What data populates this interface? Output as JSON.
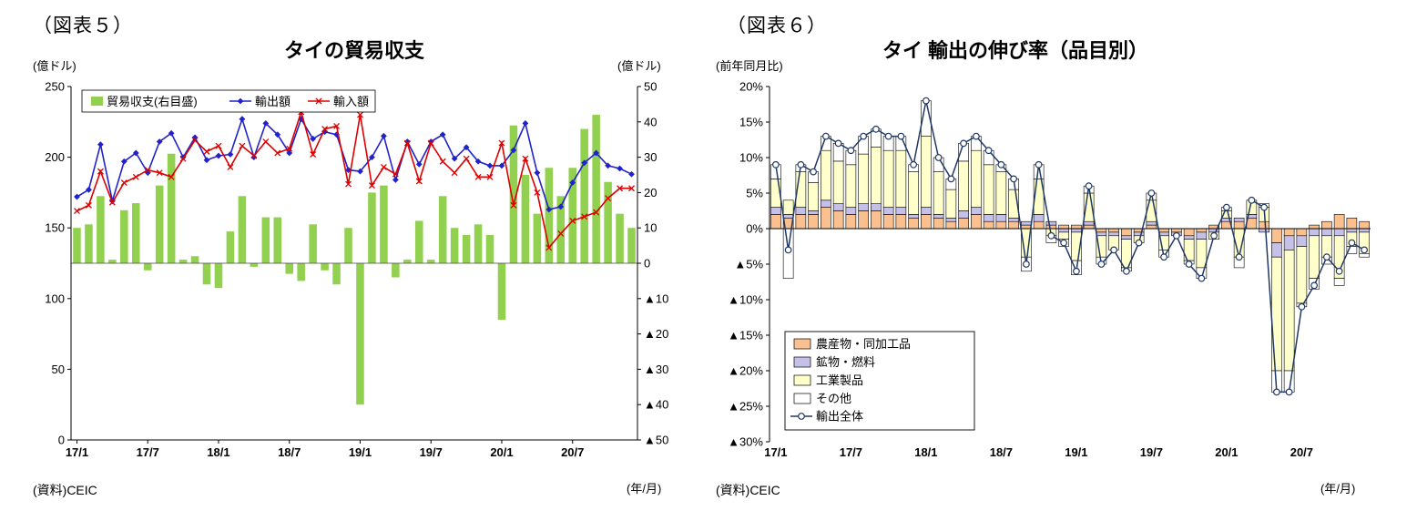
{
  "page": {
    "background": "#ffffff"
  },
  "chart_data": [
    {
      "type": "bar-line-combo",
      "fig_label": "（図表５）",
      "title": "タイの貿易収支",
      "unit_left": "(億ドル)",
      "unit_right": "(億ドル)",
      "source": "(資料)CEIC",
      "xaxis_note": "(年/月)",
      "legend_position": "top-inside",
      "grid": false,
      "ylim_left": [
        0,
        250
      ],
      "ylim_right": [
        -50,
        50
      ],
      "yticks_left": [
        {
          "v": 0,
          "label": "0"
        },
        {
          "v": 50,
          "label": "50"
        },
        {
          "v": 100,
          "label": "100"
        },
        {
          "v": 150,
          "label": "150"
        },
        {
          "v": 200,
          "label": "200"
        },
        {
          "v": 250,
          "label": "250"
        }
      ],
      "yticks_right": [
        {
          "v": 50,
          "label": "50"
        },
        {
          "v": 40,
          "label": "40"
        },
        {
          "v": 30,
          "label": "30"
        },
        {
          "v": 20,
          "label": "20"
        },
        {
          "v": 10,
          "label": "10"
        },
        {
          "v": 0,
          "label": "0"
        },
        {
          "v": -10,
          "label": "▲10"
        },
        {
          "v": -20,
          "label": "▲20"
        },
        {
          "v": -30,
          "label": "▲30"
        },
        {
          "v": -40,
          "label": "▲40"
        },
        {
          "v": -50,
          "label": "▲50"
        }
      ],
      "months": [
        "17/1",
        "17/2",
        "17/3",
        "17/4",
        "17/5",
        "17/6",
        "17/7",
        "17/8",
        "17/9",
        "17/10",
        "17/11",
        "17/12",
        "18/1",
        "18/2",
        "18/3",
        "18/4",
        "18/5",
        "18/6",
        "18/7",
        "18/8",
        "18/9",
        "18/10",
        "18/11",
        "18/12",
        "19/1",
        "19/2",
        "19/3",
        "19/4",
        "19/5",
        "19/6",
        "19/7",
        "19/8",
        "19/9",
        "19/10",
        "19/11",
        "19/12",
        "20/1",
        "20/2",
        "20/3",
        "20/4",
        "20/5",
        "20/6",
        "20/7",
        "20/8",
        "20/9",
        "20/10",
        "20/11",
        "20/12"
      ],
      "xtick_indices": [
        0,
        6,
        12,
        18,
        24,
        30,
        36,
        42
      ],
      "balance": {
        "name": "貿易収支(右目盛)",
        "axis": "right",
        "color": "#92d050",
        "values": [
          10,
          11,
          19,
          1,
          15,
          17,
          -2,
          22,
          31,
          1,
          2,
          -6,
          -7,
          9,
          19,
          -1,
          13,
          13,
          -3,
          -5,
          11,
          -2,
          -6,
          10,
          -40,
          20,
          22,
          -4,
          1,
          12,
          1,
          19,
          10,
          8,
          11,
          8,
          -16,
          39,
          25,
          14,
          27,
          19,
          27,
          38,
          42,
          23,
          14,
          10
        ]
      },
      "exports": {
        "name": "輸出額",
        "axis": "left",
        "color": "#2222cc",
        "marker": "diamond",
        "values": [
          172,
          177,
          209,
          169,
          197,
          203,
          189,
          211,
          217,
          200,
          214,
          198,
          201,
          202,
          227,
          200,
          224,
          216,
          203,
          227,
          213,
          218,
          216,
          191,
          190,
          200,
          215,
          184,
          211,
          195,
          211,
          216,
          199,
          207,
          197,
          194,
          194,
          205,
          224,
          189,
          163,
          165,
          182,
          196,
          203,
          194,
          192,
          188
        ]
      },
      "imports": {
        "name": "輸入額",
        "axis": "left",
        "color": "#dd0000",
        "marker": "x",
        "values": [
          162,
          166,
          190,
          168,
          182,
          186,
          191,
          189,
          186,
          199,
          212,
          204,
          208,
          193,
          208,
          201,
          211,
          203,
          206,
          232,
          202,
          220,
          222,
          181,
          230,
          180,
          193,
          188,
          210,
          183,
          210,
          197,
          189,
          199,
          186,
          186,
          210,
          166,
          199,
          175,
          136,
          146,
          155,
          158,
          161,
          171,
          178,
          178
        ]
      }
    },
    {
      "type": "stacked-bar-line",
      "fig_label": "（図表６）",
      "title": "タイ 輸出の伸び率（品目別）",
      "unit": "(前年同月比)",
      "source": "(資料)CEIC",
      "xaxis_note": "(年/月)",
      "legend_position": "bottom-left-inside",
      "grid": false,
      "ylim": [
        -30,
        20
      ],
      "yticks": [
        {
          "v": 20,
          "label": "20%"
        },
        {
          "v": 15,
          "label": "15%"
        },
        {
          "v": 10,
          "label": "10%"
        },
        {
          "v": 5,
          "label": "5%"
        },
        {
          "v": 0,
          "label": "0%"
        },
        {
          "v": -5,
          "label": "▲5%"
        },
        {
          "v": -10,
          "label": "▲10%"
        },
        {
          "v": -15,
          "label": "▲15%"
        },
        {
          "v": -20,
          "label": "▲20%"
        },
        {
          "v": -25,
          "label": "▲25%"
        },
        {
          "v": -30,
          "label": "▲30%"
        }
      ],
      "months": [
        "17/1",
        "17/2",
        "17/3",
        "17/4",
        "17/5",
        "17/6",
        "17/7",
        "17/8",
        "17/9",
        "17/10",
        "17/11",
        "17/12",
        "18/1",
        "18/2",
        "18/3",
        "18/4",
        "18/5",
        "18/6",
        "18/7",
        "18/8",
        "18/9",
        "18/10",
        "18/11",
        "18/12",
        "19/1",
        "19/2",
        "19/3",
        "19/4",
        "19/5",
        "19/6",
        "19/7",
        "19/8",
        "19/9",
        "19/10",
        "19/11",
        "19/12",
        "20/1",
        "20/2",
        "20/3",
        "20/4",
        "20/5",
        "20/6",
        "20/7",
        "20/8",
        "20/9",
        "20/10",
        "20/11",
        "20/12"
      ],
      "xtick_indices": [
        0,
        6,
        12,
        18,
        24,
        30,
        36,
        42
      ],
      "bar_series": [
        {
          "name": "農産物・同加工品",
          "color": "#fac090",
          "values": [
            2,
            1.5,
            2,
            2,
            3,
            2.5,
            2,
            2.5,
            2.5,
            2,
            2,
            1.5,
            2,
            1.5,
            1,
            1.5,
            2,
            1,
            1,
            1,
            0.5,
            1,
            0.5,
            0.5,
            0.5,
            0.5,
            -0.5,
            -0.5,
            -1,
            -0.5,
            0.5,
            -0.5,
            -0.5,
            -1,
            -0.5,
            0.5,
            1,
            1,
            1.5,
            1,
            -2,
            -1,
            -1,
            0.5,
            1,
            2,
            1.5,
            1
          ]
        },
        {
          "name": "鉱物・燃料",
          "color": "#c5c0e8",
          "values": [
            1,
            0.5,
            1,
            0.5,
            1,
            1,
            1,
            1,
            1,
            1,
            1,
            0.5,
            1,
            0.5,
            0.5,
            1,
            1,
            1,
            1,
            0.5,
            0.5,
            1,
            0.5,
            -0.5,
            -0.5,
            0.5,
            -0.5,
            -0.5,
            -0.5,
            -0.5,
            0.5,
            -0.5,
            -0.5,
            -0.5,
            -1,
            -0.5,
            0.5,
            0.5,
            0.5,
            -0.5,
            -2,
            -2,
            -1.5,
            -1,
            -1,
            -1,
            -0.5,
            -0.5
          ]
        },
        {
          "name": "工業製品",
          "color": "#ffffcc",
          "values": [
            4,
            2,
            5,
            4,
            7,
            6,
            6,
            7,
            8,
            8,
            8,
            6,
            10,
            6,
            4,
            7,
            8,
            7,
            6,
            4,
            -4,
            5,
            -1,
            -1,
            -4,
            4,
            -3,
            -2,
            -4,
            -1,
            3,
            -2,
            0,
            -3,
            -4,
            -1,
            1,
            -4,
            2,
            2,
            -16,
            -17,
            -8,
            -6,
            -3,
            -6,
            -2,
            -3
          ]
        },
        {
          "name": "その他",
          "color": "#ffffff",
          "values": [
            2,
            -7,
            1,
            1.5,
            2,
            2.5,
            2,
            2.5,
            2.5,
            2,
            2,
            1,
            5,
            2,
            1.5,
            2.5,
            2,
            2,
            1,
            1.5,
            -2,
            2,
            -1,
            -1,
            -2,
            1,
            -1,
            0,
            -0.5,
            0,
            1,
            -1,
            0,
            -0.5,
            -1.5,
            0,
            0.5,
            -1.5,
            0,
            0.5,
            -3,
            -3,
            -0.5,
            -1.5,
            -1,
            -1,
            -1,
            -0.5
          ]
        }
      ],
      "line_series": {
        "name": "輸出全体",
        "color": "#203864",
        "marker": "open-circle",
        "values": [
          9,
          -3,
          9,
          8,
          13,
          12,
          11,
          13,
          14,
          13,
          13,
          9,
          18,
          10,
          7,
          12,
          13,
          11,
          9,
          7,
          -5,
          9,
          -1,
          -2,
          -6,
          6,
          -5,
          -3,
          -6,
          -2,
          5,
          -4,
          -1,
          -5,
          -7,
          -1,
          3,
          -4,
          4,
          3,
          -23,
          -23,
          -11,
          -8,
          -4,
          -6,
          -2,
          -3
        ]
      }
    }
  ]
}
